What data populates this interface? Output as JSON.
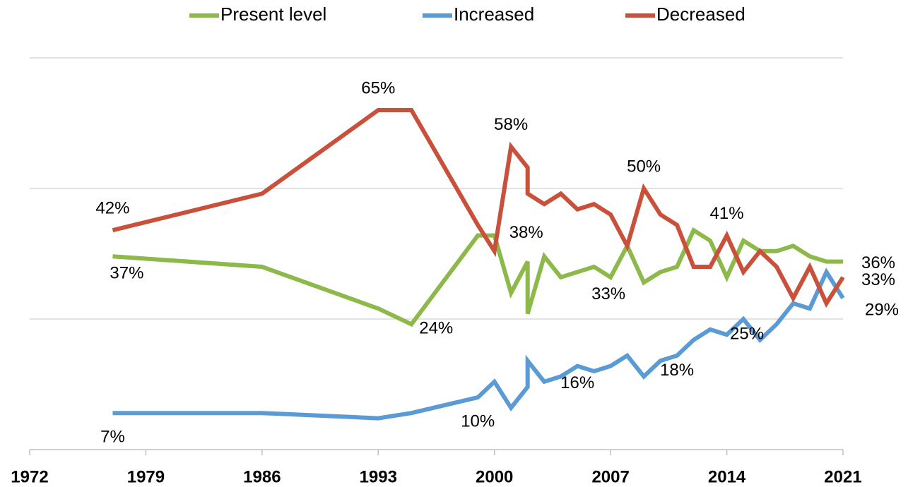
{
  "chart_data": {
    "type": "line",
    "x": [
      1977,
      1986,
      1993,
      1995,
      1999,
      2000,
      2001,
      2002,
      2002,
      2003,
      2004,
      2005,
      2006,
      2007,
      2008,
      2009,
      2010,
      2011,
      2012,
      2013,
      2014,
      2015,
      2016,
      2017,
      2018,
      2019,
      2020,
      2021
    ],
    "series": [
      {
        "name": "Present level",
        "color": "#8cb94a",
        "values": [
          37,
          35,
          27,
          24,
          41,
          41,
          30,
          36,
          26,
          37,
          33,
          34,
          35,
          33,
          39,
          32,
          34,
          35,
          42,
          40,
          33,
          40,
          38,
          38,
          39,
          37,
          36,
          36
        ],
        "value_labels": [
          "37%",
          null,
          null,
          "24%",
          null,
          null,
          null,
          null,
          null,
          null,
          null,
          null,
          null,
          "33%",
          null,
          null,
          null,
          null,
          null,
          null,
          null,
          null,
          null,
          null,
          null,
          null,
          null,
          "36%"
        ]
      },
      {
        "name": "Increased",
        "color": "#5b9bd5",
        "values": [
          7,
          7,
          6,
          7,
          10,
          13,
          8,
          12,
          17,
          13,
          14,
          16,
          15,
          16,
          18,
          14,
          17,
          18,
          21,
          23,
          22,
          25,
          21,
          24,
          28,
          27,
          34,
          29
        ],
        "value_labels": [
          "7%",
          null,
          null,
          null,
          "10%",
          null,
          null,
          null,
          null,
          null,
          null,
          "16%",
          null,
          null,
          null,
          null,
          null,
          "18%",
          null,
          null,
          null,
          "25%",
          null,
          null,
          null,
          null,
          null,
          "29%"
        ]
      },
      {
        "name": "Decreased",
        "color": "#c9503a",
        "values": [
          42,
          49,
          65,
          65,
          43,
          38,
          58,
          54,
          49,
          47,
          49,
          46,
          47,
          45,
          39,
          50,
          45,
          43,
          35,
          35,
          41,
          34,
          38,
          35,
          29,
          35,
          28,
          33
        ],
        "value_labels": [
          "42%",
          null,
          "65%",
          null,
          null,
          "38%",
          "58%",
          null,
          null,
          null,
          null,
          null,
          null,
          null,
          null,
          "50%",
          null,
          null,
          null,
          null,
          "41%",
          null,
          null,
          null,
          null,
          null,
          null,
          "33%"
        ]
      }
    ],
    "xlim": [
      1972,
      2021
    ],
    "xticks": [
      1972,
      1979,
      1986,
      1993,
      2000,
      2007,
      2014,
      2021
    ],
    "ylim": [
      0,
      75
    ],
    "yticks": [
      0,
      25,
      50,
      75
    ],
    "ytick_labels": false,
    "grid": true,
    "legend": "top"
  }
}
